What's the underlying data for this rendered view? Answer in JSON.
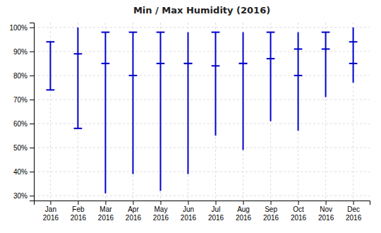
{
  "chart_data": {
    "type": "range",
    "title": "Min / Max Humidity (2016)",
    "categories": [
      "Jan\n2016",
      "Feb\n2016",
      "Mar\n2016",
      "Apr\n2016",
      "May\n2016",
      "Jun\n2016",
      "Jul\n2016",
      "Aug\n2016",
      "Sep\n2016",
      "Oct\n2016",
      "Nov\n2016",
      "Dec\n2016"
    ],
    "min": [
      74,
      58,
      31,
      39,
      32,
      39,
      55,
      49,
      61,
      57,
      71,
      77
    ],
    "max": [
      94,
      100,
      98,
      98,
      98,
      98,
      98,
      98,
      98,
      98,
      98,
      100
    ],
    "avg_min": [
      74,
      58,
      85,
      80,
      85,
      85,
      84,
      85,
      87,
      80,
      91,
      85
    ],
    "avg_max": [
      94,
      89,
      98,
      98,
      98,
      85,
      98,
      85,
      98,
      91,
      98,
      94
    ],
    "color": "#0000CC",
    "ylim": [
      28,
      102
    ],
    "yticks": [
      {
        "value": 30,
        "label": "30%"
      },
      {
        "value": 40,
        "label": "40%"
      },
      {
        "value": 50,
        "label": "50%"
      },
      {
        "value": 60,
        "label": "60%"
      },
      {
        "value": 70,
        "label": "70%"
      },
      {
        "value": 80,
        "label": "80%"
      },
      {
        "value": 90,
        "label": "90%"
      },
      {
        "value": 100,
        "label": "100%"
      }
    ],
    "grid": true
  }
}
